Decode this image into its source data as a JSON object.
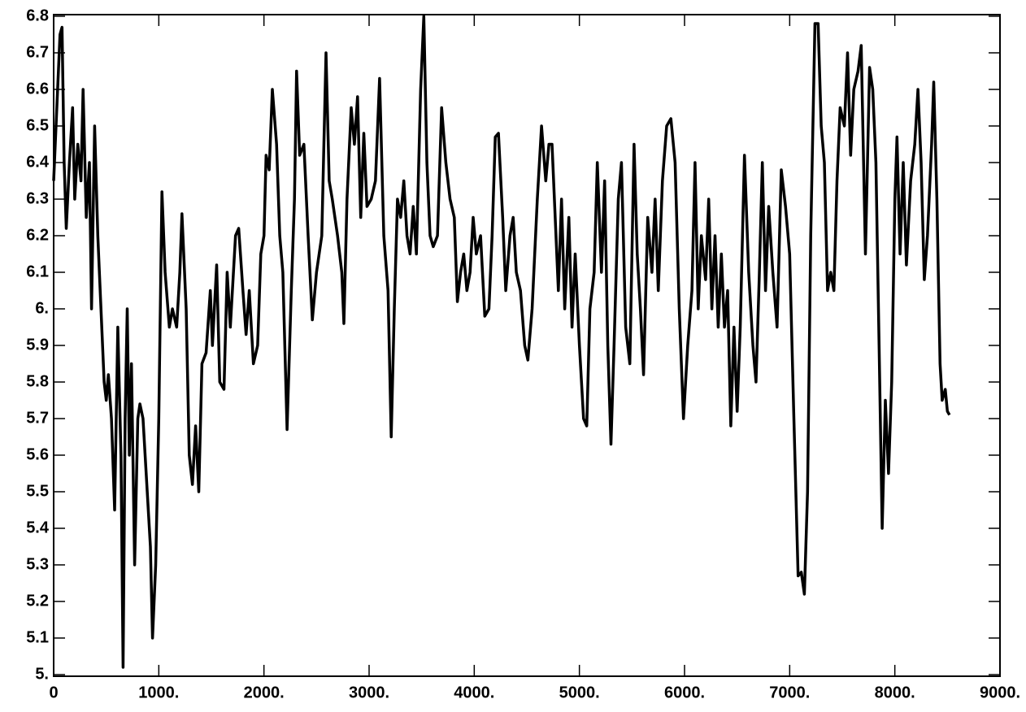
{
  "chart_data": {
    "type": "line",
    "color": "#000000",
    "x": [
      0,
      30,
      60,
      80,
      100,
      120,
      150,
      180,
      200,
      230,
      260,
      280,
      310,
      340,
      360,
      390,
      420,
      450,
      480,
      500,
      520,
      550,
      580,
      610,
      640,
      660,
      680,
      700,
      720,
      740,
      770,
      800,
      820,
      850,
      880,
      920,
      940,
      970,
      1000,
      1030,
      1060,
      1100,
      1130,
      1170,
      1200,
      1220,
      1260,
      1290,
      1320,
      1350,
      1380,
      1410,
      1450,
      1490,
      1510,
      1550,
      1580,
      1620,
      1650,
      1680,
      1730,
      1760,
      1800,
      1830,
      1860,
      1900,
      1940,
      1970,
      2000,
      2020,
      2050,
      2080,
      2120,
      2150,
      2180,
      2220,
      2260,
      2290,
      2310,
      2340,
      2380,
      2420,
      2460,
      2500,
      2550,
      2590,
      2620,
      2650,
      2700,
      2740,
      2760,
      2790,
      2830,
      2860,
      2890,
      2920,
      2950,
      2980,
      3020,
      3060,
      3100,
      3140,
      3180,
      3210,
      3240,
      3270,
      3300,
      3330,
      3360,
      3390,
      3420,
      3450,
      3490,
      3520,
      3550,
      3580,
      3610,
      3650,
      3690,
      3730,
      3770,
      3810,
      3840,
      3870,
      3900,
      3930,
      3960,
      3990,
      4020,
      4060,
      4100,
      4140,
      4170,
      4200,
      4230,
      4270,
      4300,
      4340,
      4370,
      4400,
      4440,
      4480,
      4510,
      4550,
      4600,
      4640,
      4680,
      4710,
      4740,
      4770,
      4800,
      4830,
      4860,
      4900,
      4930,
      4960,
      5000,
      5040,
      5070,
      5100,
      5140,
      5170,
      5210,
      5240,
      5270,
      5300,
      5330,
      5370,
      5400,
      5440,
      5480,
      5520,
      5550,
      5580,
      5610,
      5650,
      5690,
      5720,
      5750,
      5790,
      5830,
      5870,
      5910,
      5950,
      5990,
      6030,
      6070,
      6100,
      6130,
      6160,
      6200,
      6230,
      6260,
      6290,
      6320,
      6350,
      6380,
      6410,
      6440,
      6470,
      6500,
      6530,
      6570,
      6610,
      6650,
      6680,
      6710,
      6740,
      6770,
      6800,
      6840,
      6880,
      6920,
      6960,
      7000,
      7040,
      7080,
      7110,
      7140,
      7170,
      7200,
      7240,
      7270,
      7300,
      7330,
      7360,
      7390,
      7420,
      7450,
      7480,
      7520,
      7550,
      7580,
      7610,
      7650,
      7680,
      7720,
      7760,
      7790,
      7820,
      7850,
      7880,
      7910,
      7940,
      7970,
      8000,
      8020,
      8050,
      8080,
      8110,
      8150,
      8190,
      8220,
      8250,
      8280,
      8310,
      8350,
      8370,
      8400,
      8430,
      8450,
      8480,
      8500,
      8520
    ],
    "values": [
      6.35,
      6.55,
      6.75,
      6.77,
      6.4,
      6.22,
      6.4,
      6.55,
      6.3,
      6.45,
      6.35,
      6.6,
      6.25,
      6.4,
      6.0,
      6.5,
      6.2,
      6.0,
      5.8,
      5.75,
      5.82,
      5.7,
      5.45,
      5.95,
      5.6,
      5.02,
      5.7,
      6.0,
      5.6,
      5.85,
      5.3,
      5.7,
      5.74,
      5.7,
      5.55,
      5.35,
      5.1,
      5.3,
      5.7,
      6.32,
      6.1,
      5.95,
      6.0,
      5.95,
      6.1,
      6.26,
      6.0,
      5.6,
      5.52,
      5.68,
      5.5,
      5.85,
      5.88,
      6.05,
      5.9,
      6.12,
      5.8,
      5.78,
      6.1,
      5.95,
      6.2,
      6.22,
      6.05,
      5.93,
      6.05,
      5.85,
      5.9,
      6.15,
      6.2,
      6.42,
      6.38,
      6.6,
      6.45,
      6.2,
      6.1,
      5.67,
      6.05,
      6.3,
      6.65,
      6.42,
      6.45,
      6.2,
      5.97,
      6.1,
      6.2,
      6.7,
      6.35,
      6.3,
      6.2,
      6.1,
      5.96,
      6.3,
      6.55,
      6.45,
      6.58,
      6.25,
      6.48,
      6.28,
      6.3,
      6.35,
      6.63,
      6.2,
      6.05,
      5.65,
      6.0,
      6.3,
      6.25,
      6.35,
      6.2,
      6.15,
      6.28,
      6.15,
      6.6,
      6.8,
      6.4,
      6.2,
      6.17,
      6.2,
      6.55,
      6.4,
      6.3,
      6.25,
      6.02,
      6.1,
      6.15,
      6.05,
      6.1,
      6.25,
      6.15,
      6.2,
      5.98,
      6.0,
      6.2,
      6.47,
      6.48,
      6.25,
      6.05,
      6.2,
      6.25,
      6.1,
      6.05,
      5.9,
      5.86,
      6.0,
      6.3,
      6.5,
      6.35,
      6.45,
      6.45,
      6.25,
      6.05,
      6.3,
      6.0,
      6.25,
      5.95,
      6.15,
      5.9,
      5.7,
      5.68,
      6.0,
      6.1,
      6.4,
      6.1,
      6.35,
      5.9,
      5.63,
      5.9,
      6.3,
      6.4,
      5.95,
      5.85,
      6.45,
      6.15,
      6.0,
      5.82,
      6.25,
      6.1,
      6.3,
      6.05,
      6.35,
      6.5,
      6.52,
      6.4,
      6.0,
      5.7,
      5.9,
      6.05,
      6.4,
      6.0,
      6.2,
      6.08,
      6.3,
      6.0,
      6.2,
      5.95,
      6.15,
      5.95,
      6.05,
      5.68,
      5.95,
      5.72,
      5.95,
      6.42,
      6.1,
      5.9,
      5.8,
      6.08,
      6.4,
      6.05,
      6.28,
      6.1,
      5.95,
      6.38,
      6.28,
      6.15,
      5.7,
      5.27,
      5.28,
      5.22,
      5.5,
      6.2,
      6.78,
      6.78,
      6.5,
      6.4,
      6.05,
      6.1,
      6.05,
      6.35,
      6.55,
      6.5,
      6.7,
      6.42,
      6.6,
      6.65,
      6.72,
      6.15,
      6.66,
      6.6,
      6.4,
      5.9,
      5.4,
      5.75,
      5.55,
      5.8,
      6.3,
      6.47,
      6.15,
      6.4,
      6.12,
      6.35,
      6.45,
      6.6,
      6.4,
      6.08,
      6.2,
      6.45,
      6.62,
      6.3,
      5.85,
      5.75,
      5.78,
      5.72,
      5.71
    ],
    "xlim": [
      0,
      9000
    ],
    "xticks": [
      0,
      {
        "value": 1000,
        "label": "1000."
      },
      {
        "value": 2000,
        "label": "2000."
      },
      {
        "value": 3000,
        "label": "3000."
      },
      {
        "value": 4000,
        "label": "4000."
      },
      {
        "value": 5000,
        "label": "5000."
      },
      {
        "value": 6000,
        "label": "6000."
      },
      {
        "value": 7000,
        "label": "7000."
      },
      {
        "value": 8000,
        "label": "8000."
      },
      {
        "value": 9000,
        "label": "9000."
      }
    ],
    "ylim": [
      5,
      6.8
    ],
    "yticks": [
      {
        "value": 5,
        "label": "5."
      },
      5.1,
      5.2,
      5.3,
      5.4,
      5.5,
      5.6,
      5.7,
      5.8,
      5.9,
      {
        "value": 6,
        "label": "6."
      },
      6.1,
      6.2,
      6.3,
      6.4,
      6.5,
      6.6,
      6.7,
      6.8
    ]
  }
}
